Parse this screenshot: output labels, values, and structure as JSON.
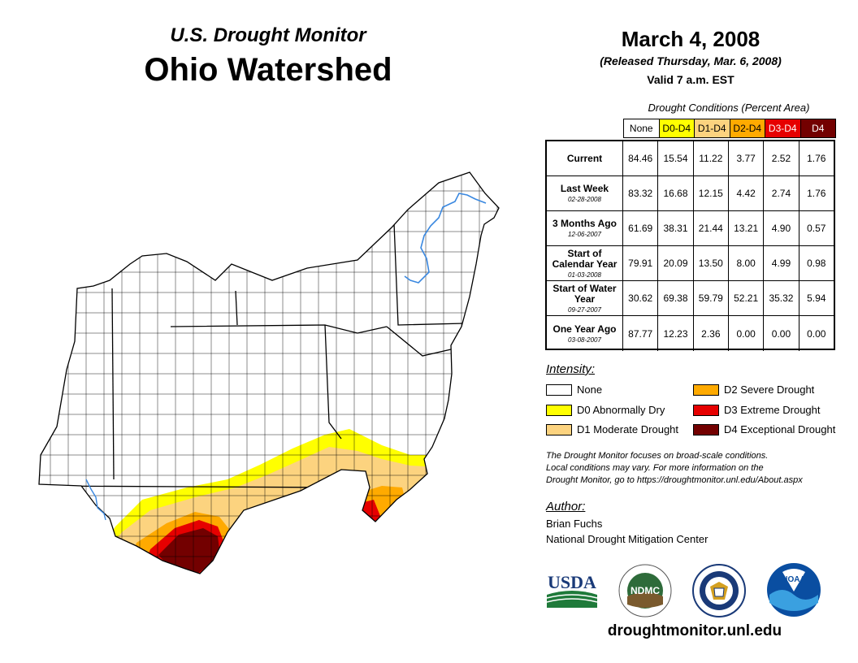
{
  "header": {
    "super_title": "U.S. Drought Monitor",
    "title": "Ohio Watershed",
    "date": "March 4, 2008",
    "released": "(Released Thursday, Mar. 6, 2008)",
    "valid": "Valid 7 a.m. EST"
  },
  "table": {
    "caption": "Drought Conditions (Percent Area)",
    "columns": [
      {
        "label": "None",
        "color": "#ffffff",
        "text_color": "#000000"
      },
      {
        "label": "D0-D4",
        "color": "#ffff00",
        "text_color": "#000000"
      },
      {
        "label": "D1-D4",
        "color": "#fcd37f",
        "text_color": "#000000"
      },
      {
        "label": "D2-D4",
        "color": "#ffaa00",
        "text_color": "#000000"
      },
      {
        "label": "D3-D4",
        "color": "#e60000",
        "text_color": "#ffffff"
      },
      {
        "label": "D4",
        "color": "#730000",
        "text_color": "#ffffff"
      }
    ],
    "rows": [
      {
        "label": "Current",
        "date": "",
        "values": [
          "84.46",
          "15.54",
          "11.22",
          "3.77",
          "2.52",
          "1.76"
        ]
      },
      {
        "label": "Last Week",
        "date": "02-28-2008",
        "values": [
          "83.32",
          "16.68",
          "12.15",
          "4.42",
          "2.74",
          "1.76"
        ]
      },
      {
        "label": "3 Months Ago",
        "date": "12-06-2007",
        "values": [
          "61.69",
          "38.31",
          "21.44",
          "13.21",
          "4.90",
          "0.57"
        ]
      },
      {
        "label": "Start of Calendar Year",
        "date": "01-03-2008",
        "values": [
          "79.91",
          "20.09",
          "13.50",
          "8.00",
          "4.99",
          "0.98"
        ]
      },
      {
        "label": "Start of Water Year",
        "date": "09-27-2007",
        "values": [
          "30.62",
          "69.38",
          "59.79",
          "52.21",
          "35.32",
          "5.94"
        ]
      },
      {
        "label": "One Year Ago",
        "date": "03-08-2007",
        "values": [
          "87.77",
          "12.23",
          "2.36",
          "0.00",
          "0.00",
          "0.00"
        ]
      }
    ]
  },
  "legend": {
    "title": "Intensity:",
    "items": [
      {
        "label": "None",
        "color": "#ffffff"
      },
      {
        "label": "D0 Abnormally Dry",
        "color": "#ffff00"
      },
      {
        "label": "D1 Moderate Drought",
        "color": "#fcd37f"
      },
      {
        "label": "D2 Severe Drought",
        "color": "#ffaa00"
      },
      {
        "label": "D3 Extreme Drought",
        "color": "#e60000"
      },
      {
        "label": "D4 Exceptional Drought",
        "color": "#730000"
      }
    ]
  },
  "note": {
    "line1": "The Drought Monitor focuses on broad-scale conditions.",
    "line2": "Local conditions may vary. For more information on the",
    "line3": "Drought Monitor, go to https://droughtmonitor.unl.edu/About.aspx"
  },
  "author": {
    "label": "Author:",
    "name": "Brian Fuchs",
    "org": "National Drought Mitigation Center"
  },
  "logos": {
    "usda": "USDA",
    "ndmc": "NDMC",
    "noaa": "NOAA"
  },
  "footer": {
    "url": "droughtmonitor.unl.edu"
  }
}
